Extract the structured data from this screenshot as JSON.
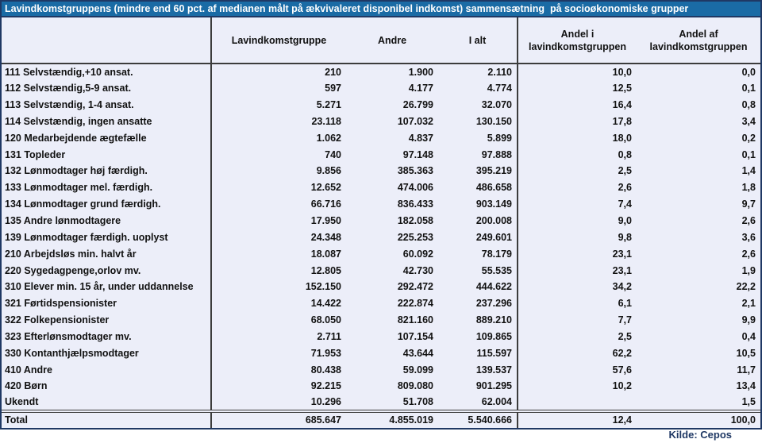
{
  "title": "Lavindkomstgruppens (mindre end 60 pct. af medianen målt på ækvivaleret disponibel indkomst) sammensætning  på socioøkonomiske grupper",
  "columns": [
    "",
    "Lavindkomstgruppe",
    "Andre",
    "I alt",
    "Andel i\nlavindkomstgruppen",
    "Andel af\nlavindkomstgruppen"
  ],
  "rows": [
    [
      "111 Selvstændig,+10 ansat.",
      "210",
      "1.900",
      "2.110",
      "10,0",
      "0,0"
    ],
    [
      "112 Selvstændig,5-9 ansat.",
      "597",
      "4.177",
      "4.774",
      "12,5",
      "0,1"
    ],
    [
      "113 Selvstændig, 1-4 ansat.",
      "5.271",
      "26.799",
      "32.070",
      "16,4",
      "0,8"
    ],
    [
      "114 Selvstændig, ingen ansatte",
      "23.118",
      "107.032",
      "130.150",
      "17,8",
      "3,4"
    ],
    [
      "120 Medarbejdende ægtefælle",
      "1.062",
      "4.837",
      "5.899",
      "18,0",
      "0,2"
    ],
    [
      "131 Topleder",
      "740",
      "97.148",
      "97.888",
      "0,8",
      "0,1"
    ],
    [
      "132 Lønmodtager høj færdigh.",
      "9.856",
      "385.363",
      "395.219",
      "2,5",
      "1,4"
    ],
    [
      "133 Lønmodtager mel. færdigh.",
      "12.652",
      "474.006",
      "486.658",
      "2,6",
      "1,8"
    ],
    [
      "134 Lønmodtager grund færdigh.",
      "66.716",
      "836.433",
      "903.149",
      "7,4",
      "9,7"
    ],
    [
      "135 Andre lønmodtagere",
      "17.950",
      "182.058",
      "200.008",
      "9,0",
      "2,6"
    ],
    [
      "139 Lønmodtager færdigh. uoplyst",
      "24.348",
      "225.253",
      "249.601",
      "9,8",
      "3,6"
    ],
    [
      "210 Arbejdsløs min. halvt år",
      "18.087",
      "60.092",
      "78.179",
      "23,1",
      "2,6"
    ],
    [
      "220 Sygedagpenge,orlov mv.",
      "12.805",
      "42.730",
      "55.535",
      "23,1",
      "1,9"
    ],
    [
      "310 Elever min. 15 år, under uddannelse",
      "152.150",
      "292.472",
      "444.622",
      "34,2",
      "22,2"
    ],
    [
      "321 Førtidspensionister",
      "14.422",
      "222.874",
      "237.296",
      "6,1",
      "2,1"
    ],
    [
      "322 Folkepensionister",
      "68.050",
      "821.160",
      "889.210",
      "7,7",
      "9,9"
    ],
    [
      "323 Efterlønsmodtager mv.",
      "2.711",
      "107.154",
      "109.865",
      "2,5",
      "0,4"
    ],
    [
      "330 Kontanthjælpsmodtager",
      "71.953",
      "43.644",
      "115.597",
      "62,2",
      "10,5"
    ],
    [
      "410 Andre",
      "80.438",
      "59.099",
      "139.537",
      "57,6",
      "11,7"
    ],
    [
      "420 Børn",
      "92.215",
      "809.080",
      "901.295",
      "10,2",
      "13,4"
    ],
    [
      "Ukendt",
      "10.296",
      "51.708",
      "62.004",
      "",
      "1,5"
    ]
  ],
  "total_row": [
    "Total",
    "685.647",
    "4.855.019",
    "5.540.666",
    "12,4",
    "100,0"
  ],
  "footer": {
    "source_label": "Kilde: Cepos"
  },
  "colors": {
    "title_bg": "#1A6BA5",
    "border_navy": "#1F3864",
    "row_bg": "#ECEEF9",
    "separator": "#3C3C3C"
  }
}
